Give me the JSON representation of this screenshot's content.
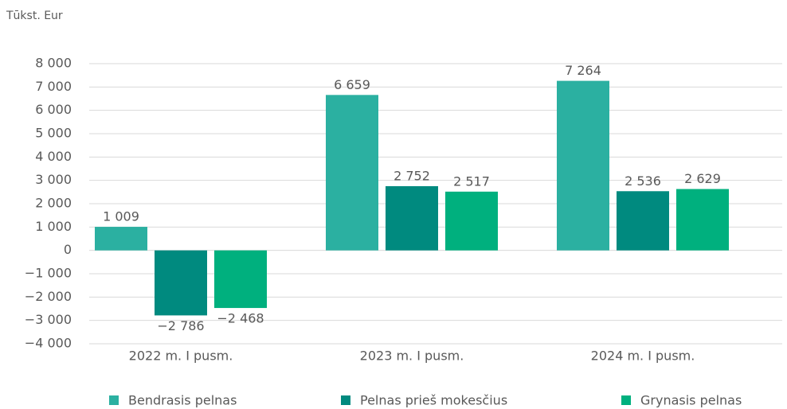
{
  "chart_data": {
    "type": "bar",
    "ylabel": "Tūkst. Eur",
    "categories": [
      "2022 m. I pusm.",
      "2023 m. I pusm.",
      "2024 m. I pusm."
    ],
    "series": [
      {
        "name": "Bendrasis pelnas",
        "color": "#2bb0a1",
        "values": [
          1009,
          6659,
          7264
        ],
        "value_labels": [
          "1 009",
          "6 659",
          "7 264"
        ]
      },
      {
        "name": "Pelnas prieš mokesčius",
        "color": "#008a7f",
        "values": [
          -2786,
          2752,
          2536
        ],
        "value_labels": [
          "−2 786",
          "2 752",
          "2 536"
        ]
      },
      {
        "name": "Grynasis pelnas",
        "color": "#00b07e",
        "values": [
          -2468,
          2517,
          2629
        ],
        "value_labels": [
          "−2 468",
          "2 517",
          "2 629"
        ]
      }
    ],
    "ylim": [
      -4000,
      8000
    ],
    "yticks": [
      {
        "value": -4000,
        "label": "−4 000"
      },
      {
        "value": -3000,
        "label": "−3 000"
      },
      {
        "value": -2000,
        "label": "−2 000"
      },
      {
        "value": -1000,
        "label": "−1 000"
      },
      0,
      {
        "value": 1000,
        "label": "1 000"
      },
      {
        "value": 2000,
        "label": "2 000"
      },
      {
        "value": 3000,
        "label": "3 000"
      },
      {
        "value": 4000,
        "label": "4 000"
      },
      {
        "value": 5000,
        "label": "5 000"
      },
      {
        "value": 6000,
        "label": "6 000"
      },
      {
        "value": 7000,
        "label": "7 000"
      },
      {
        "value": 8000,
        "label": "8 000"
      }
    ],
    "grid": true,
    "legend": "bottom"
  }
}
